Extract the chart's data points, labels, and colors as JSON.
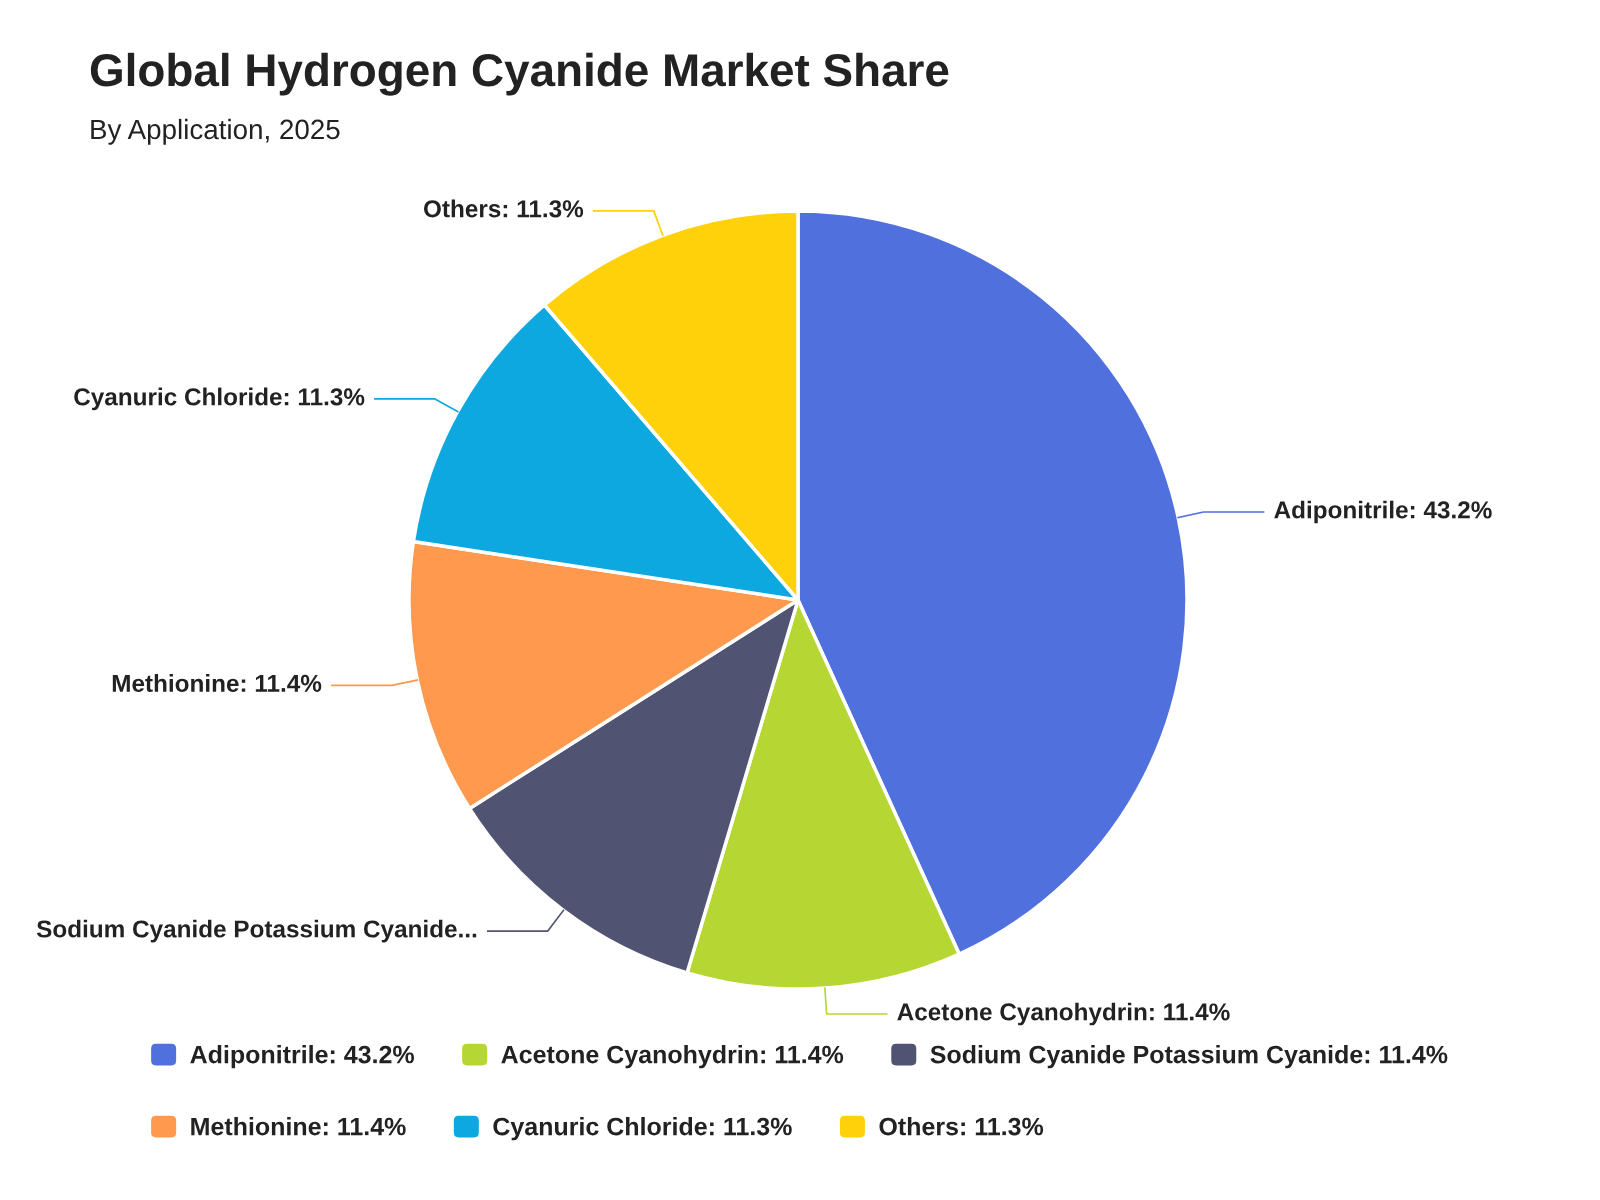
{
  "chart_data": {
    "type": "pie",
    "title": "Global Hydrogen Cyanide Market Share",
    "subtitle": "By Application, 2025",
    "categories": [
      "Adiponitrile: 43.2%",
      "Acetone Cyanohydrin: 11.4%",
      "Sodium Cyanide Potassium Cyanide: 11.4%",
      "Methionine: 11.4%",
      "Cyanuric Chloride: 11.3%",
      "Others: 11.3%"
    ],
    "values": [
      43.2,
      11.4,
      11.4,
      11.4,
      11.3,
      11.3
    ],
    "colors": [
      "#5070dd",
      "#b6d634",
      "#505372",
      "#ff994d",
      "#0ca8df",
      "#ffd10a"
    ],
    "value_labels": [
      "Adiponitrile: 43.2%",
      "Acetone Cyanohydrin: 11.4%",
      "Sodium Cyanide Potassium Cyanide...",
      "Methionine: 11.4%",
      "Cyanuric Chloride: 11.3%",
      "Others: 11.3%"
    ],
    "legend": "bottom"
  }
}
